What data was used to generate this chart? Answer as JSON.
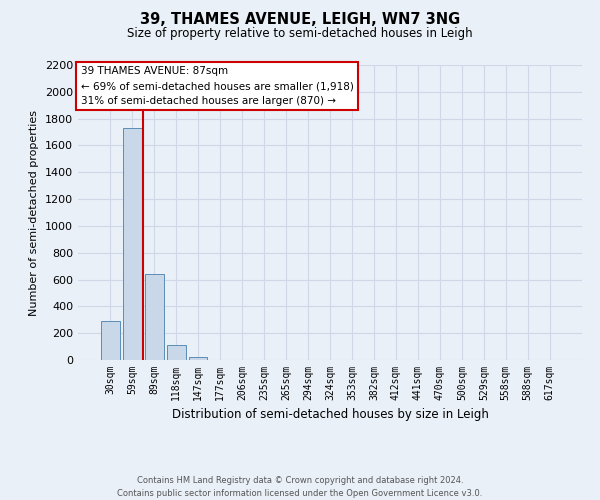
{
  "title": "39, THAMES AVENUE, LEIGH, WN7 3NG",
  "subtitle": "Size of property relative to semi-detached houses in Leigh",
  "xlabel": "Distribution of semi-detached houses by size in Leigh",
  "ylabel": "Number of semi-detached properties",
  "bar_labels": [
    "30sqm",
    "59sqm",
    "89sqm",
    "118sqm",
    "147sqm",
    "177sqm",
    "206sqm",
    "235sqm",
    "265sqm",
    "294sqm",
    "324sqm",
    "353sqm",
    "382sqm",
    "412sqm",
    "441sqm",
    "470sqm",
    "500sqm",
    "529sqm",
    "558sqm",
    "588sqm",
    "617sqm"
  ],
  "bar_values": [
    290,
    1730,
    640,
    110,
    20,
    0,
    0,
    0,
    0,
    0,
    0,
    0,
    0,
    0,
    0,
    0,
    0,
    0,
    0,
    0,
    0
  ],
  "bar_color": "#c8d8e8",
  "bar_edge_color": "#5b8db8",
  "marker_label": "39 THAMES AVENUE: 87sqm",
  "annotation_line1": "← 69% of semi-detached houses are smaller (1,918)",
  "annotation_line2": "31% of semi-detached houses are larger (870) →",
  "annotation_box_color": "#ffffff",
  "annotation_box_edge": "#cc0000",
  "marker_line_color": "#cc0000",
  "ylim": [
    0,
    2200
  ],
  "yticks": [
    0,
    200,
    400,
    600,
    800,
    1000,
    1200,
    1400,
    1600,
    1800,
    2000,
    2200
  ],
  "grid_color": "#d0d8e8",
  "background_color": "#eaf0f8",
  "footer_line1": "Contains HM Land Registry data © Crown copyright and database right 2024.",
  "footer_line2": "Contains public sector information licensed under the Open Government Licence v3.0."
}
